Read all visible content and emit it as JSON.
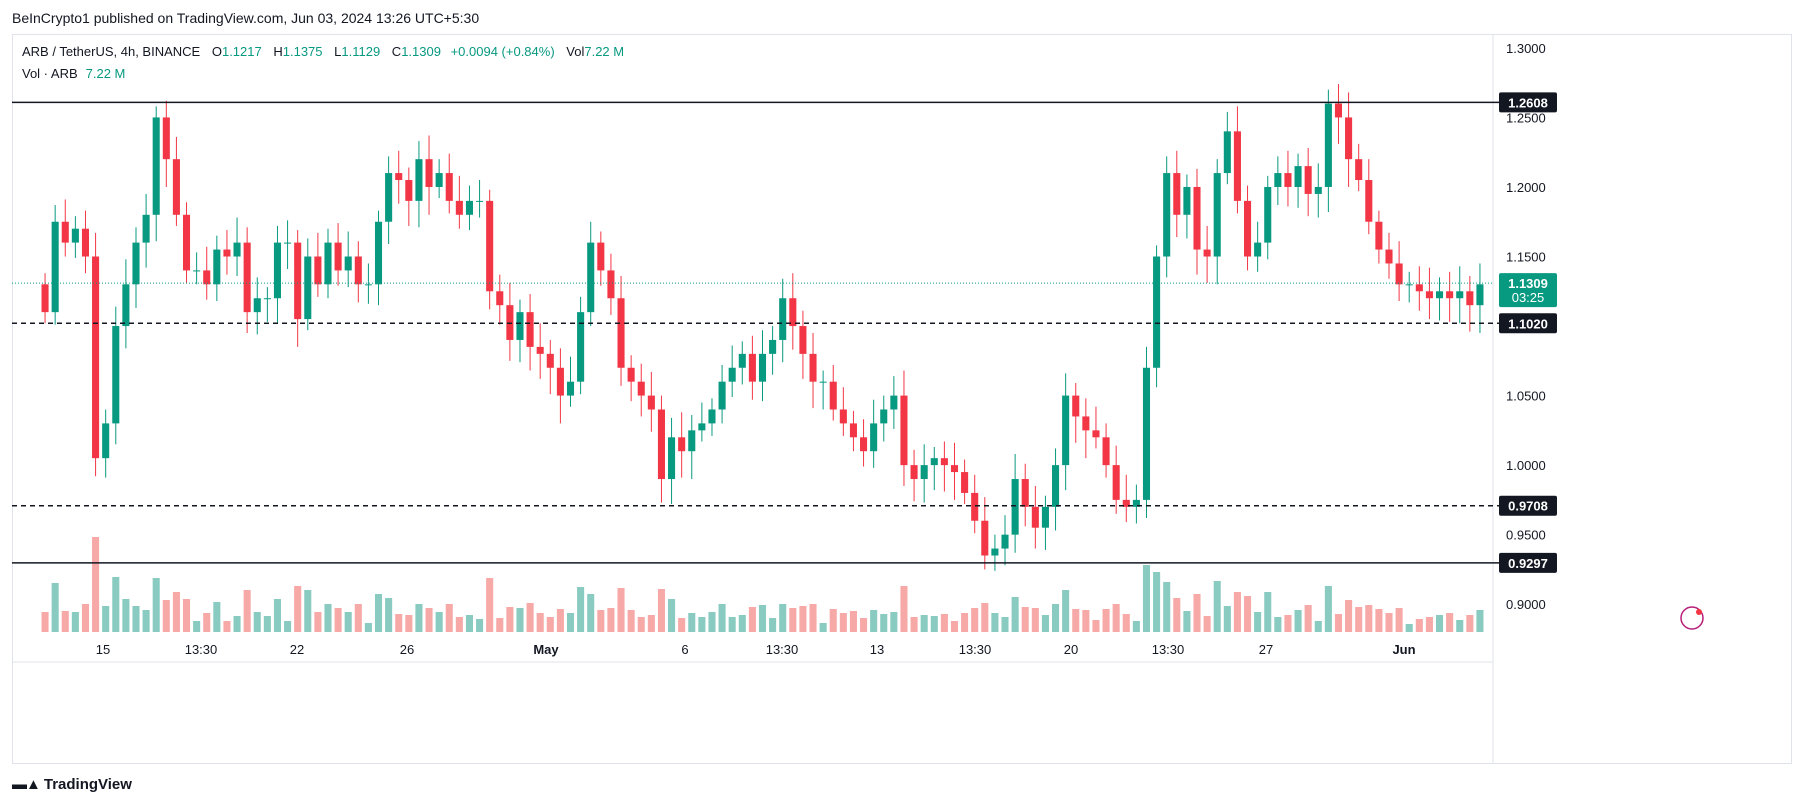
{
  "header": {
    "publish_line": "BeInCrypto1 published on TradingView.com, Jun 03, 2024 13:26 UTC+5:30"
  },
  "legend": {
    "symbol": "ARB / TetherUS, 4h, BINANCE",
    "open_label": "O",
    "open": "1.1217",
    "high_label": "H",
    "high": "1.1375",
    "low_label": "L",
    "low": "1.1129",
    "close_label": "C",
    "close": "1.1309",
    "change": "+0.0094 (+0.84%)",
    "vol_label": "Vol",
    "vol": "7.22 M",
    "vol_series_label": "Vol · ARB",
    "vol_series_value": "7.22 M"
  },
  "footer": {
    "brand": "TradingView"
  },
  "colors": {
    "up": "#089981",
    "down": "#f23645",
    "vol_up": "#89cbc1",
    "vol_down": "#f7a9a7"
  },
  "chart_data": {
    "type": "candlestick",
    "ylim": [
      0.88,
      1.31
    ],
    "y_ticks": [
      "1.3000",
      "1.2500",
      "1.2000",
      "1.1500",
      "1.1000",
      "1.0500",
      "1.0000",
      "0.9500",
      "0.9000"
    ],
    "y_tick_values": [
      1.3,
      1.25,
      1.2,
      1.15,
      1.1,
      1.05,
      1.0,
      0.95,
      0.9
    ],
    "x_ticks": [
      "15",
      "13:30",
      "22",
      "26",
      "May",
      "6",
      "13:30",
      "13",
      "13:30",
      "20",
      "13:30",
      "27",
      "Jun"
    ],
    "levels": [
      {
        "value": 1.2608,
        "label": "1.2608",
        "style": "solid"
      },
      {
        "value": 1.102,
        "label": "1.1020",
        "style": "dashed"
      },
      {
        "value": 0.9708,
        "label": "0.9708",
        "style": "dashed"
      },
      {
        "value": 0.9297,
        "label": "0.9297",
        "style": "solid"
      }
    ],
    "last_price": {
      "value": 1.1309,
      "label": "1.1309",
      "countdown": "03:25"
    },
    "closes": [
      1.11,
      1.175,
      1.16,
      1.17,
      1.15,
      1.005,
      1.03,
      1.1,
      1.13,
      1.16,
      1.18,
      1.25,
      1.22,
      1.18,
      1.14,
      1.14,
      1.13,
      1.155,
      1.15,
      1.16,
      1.11,
      1.12,
      1.12,
      1.16,
      1.16,
      1.105,
      1.15,
      1.13,
      1.16,
      1.14,
      1.15,
      1.13,
      1.13,
      1.175,
      1.21,
      1.205,
      1.19,
      1.22,
      1.2,
      1.21,
      1.19,
      1.18,
      1.19,
      1.19,
      1.125,
      1.115,
      1.09,
      1.11,
      1.085,
      1.08,
      1.07,
      1.05,
      1.06,
      1.11,
      1.16,
      1.14,
      1.12,
      1.07,
      1.06,
      1.05,
      1.04,
      0.99,
      1.02,
      1.01,
      1.025,
      1.03,
      1.04,
      1.06,
      1.07,
      1.08,
      1.06,
      1.08,
      1.09,
      1.12,
      1.1,
      1.08,
      1.06,
      1.06,
      1.04,
      1.03,
      1.02,
      1.01,
      1.03,
      1.04,
      1.05,
      1.0,
      0.99,
      1.0,
      1.005,
      1.0,
      0.995,
      0.98,
      0.96,
      0.935,
      0.94,
      0.95,
      0.99,
      0.97,
      0.955,
      0.97,
      1.0,
      1.05,
      1.035,
      1.025,
      1.02,
      1.0,
      0.975,
      0.97,
      0.975,
      1.07,
      1.15,
      1.21,
      1.18,
      1.2,
      1.155,
      1.15,
      1.21,
      1.24,
      1.19,
      1.15,
      1.16,
      1.2,
      1.21,
      1.2,
      1.215,
      1.195,
      1.2,
      1.26,
      1.25,
      1.22,
      1.205,
      1.175,
      1.155,
      1.145,
      1.13,
      1.13,
      1.125,
      1.12,
      1.125,
      1.12,
      1.125,
      1.115,
      1.13
    ]
  }
}
